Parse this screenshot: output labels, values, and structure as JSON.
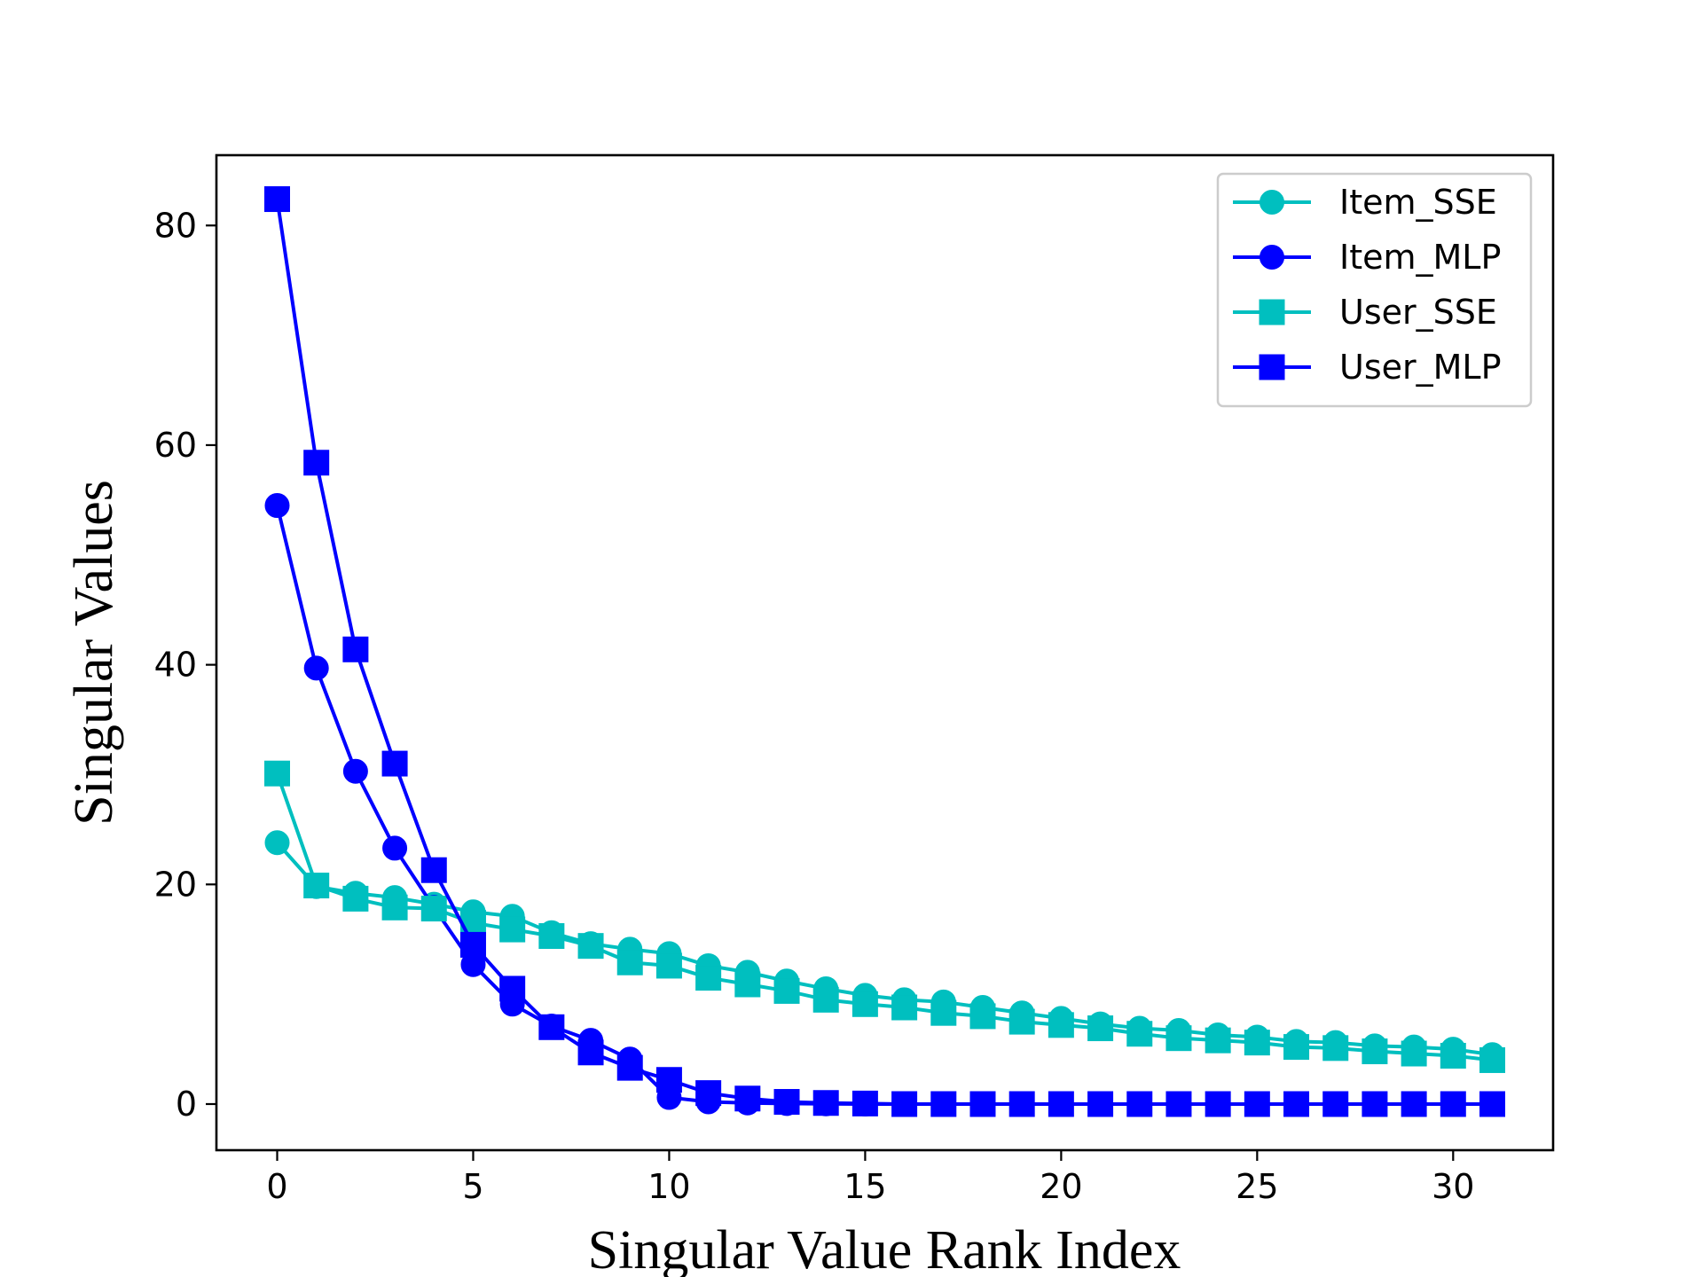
{
  "chart_data": {
    "type": "line",
    "title": "",
    "xlabel": "Singular Value Rank Index",
    "ylabel": "Singular Values",
    "xlim": [
      -1.55,
      32.55
    ],
    "ylim": [
      -4.2,
      86.4
    ],
    "x_ticks": [
      0,
      5,
      10,
      15,
      20,
      25,
      30
    ],
    "y_ticks": [
      0,
      20,
      40,
      60,
      80
    ],
    "grid": false,
    "legend_position": "top-right",
    "x": [
      0,
      1,
      2,
      3,
      4,
      5,
      6,
      7,
      8,
      9,
      10,
      11,
      12,
      13,
      14,
      15,
      16,
      17,
      18,
      19,
      20,
      21,
      22,
      23,
      24,
      25,
      26,
      27,
      28,
      29,
      30,
      31
    ],
    "series": [
      {
        "name": "Item_SSE",
        "color": "#00bfbf",
        "marker": "circle",
        "values": [
          23.8,
          19.8,
          19.2,
          18.8,
          18.2,
          17.5,
          17.1,
          15.6,
          14.6,
          14.1,
          13.7,
          12.6,
          12.0,
          11.2,
          10.5,
          9.9,
          9.5,
          9.3,
          8.8,
          8.3,
          7.8,
          7.3,
          6.9,
          6.7,
          6.3,
          6.1,
          5.7,
          5.6,
          5.3,
          5.2,
          5.0,
          4.5
        ]
      },
      {
        "name": "Item_MLP",
        "color": "#0000ff",
        "marker": "circle",
        "values": [
          54.5,
          39.7,
          30.3,
          23.3,
          17.9,
          12.7,
          9.1,
          7.1,
          5.8,
          4.1,
          0.6,
          0.2,
          0.1,
          0.05,
          0.02,
          0.0,
          0.0,
          0.0,
          0.0,
          0.0,
          0.0,
          0.0,
          0.0,
          0.0,
          0.0,
          0.0,
          0.0,
          0.0,
          0.0,
          0.0,
          0.0,
          0.0
        ]
      },
      {
        "name": "User_SSE",
        "color": "#00bfbf",
        "marker": "square",
        "values": [
          30.1,
          19.9,
          18.7,
          17.9,
          17.8,
          16.5,
          15.9,
          15.3,
          14.4,
          12.9,
          12.6,
          11.5,
          10.9,
          10.3,
          9.5,
          9.1,
          8.8,
          8.3,
          8.0,
          7.5,
          7.2,
          6.9,
          6.4,
          6.0,
          5.8,
          5.6,
          5.2,
          5.1,
          4.8,
          4.6,
          4.4,
          4.0
        ]
      },
      {
        "name": "User_MLP",
        "color": "#0000ff",
        "marker": "square",
        "values": [
          82.4,
          58.4,
          41.4,
          31.0,
          21.3,
          14.5,
          10.5,
          7.0,
          4.7,
          3.3,
          2.2,
          1.0,
          0.5,
          0.2,
          0.1,
          0.05,
          0.0,
          0.0,
          0.0,
          0.0,
          0.0,
          0.0,
          0.0,
          0.0,
          0.0,
          0.0,
          0.0,
          0.0,
          0.0,
          0.0,
          0.0,
          0.0
        ]
      }
    ]
  }
}
